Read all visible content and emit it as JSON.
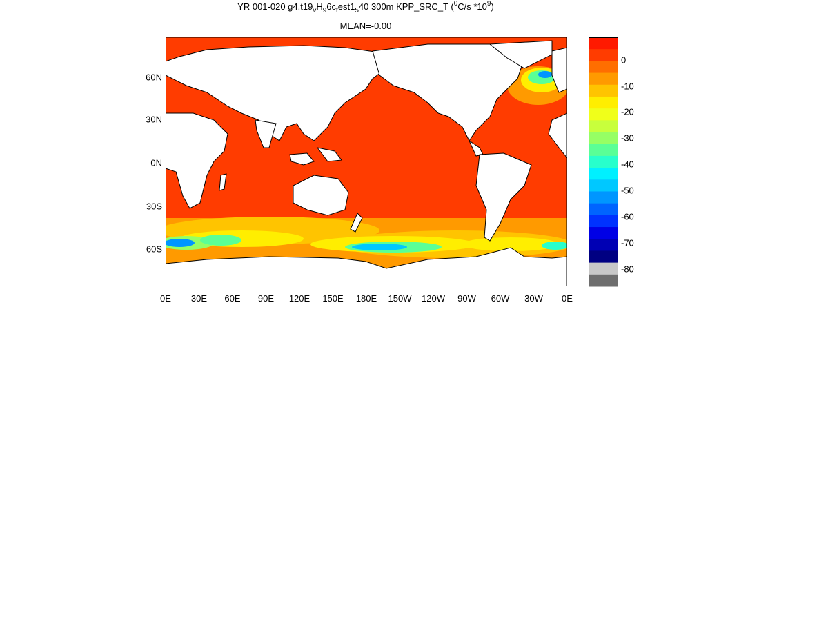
{
  "title": {
    "p1": "YR 001-020 g4.t19",
    "s1": "v",
    "p2": "H",
    "s2": "9",
    "p3": "6c",
    "s3": "t",
    "p4": "est1",
    "s4": "5",
    "p5": "40 300m KPP_SRC_T (",
    "sup1": "0",
    "p6": "C/s *10",
    "sup2": "9",
    "p7": ")"
  },
  "mean_label": "MEAN=-0.00",
  "x_ticks": [
    "0E",
    "30E",
    "60E",
    "90E",
    "120E",
    "150E",
    "180E",
    "150W",
    "120W",
    "90W",
    "60W",
    "30W",
    "0E"
  ],
  "y_ticks": [
    "60N",
    "30N",
    "0N",
    "30S",
    "60S"
  ],
  "colorbar": {
    "labels": [
      "0",
      "-10",
      "-20",
      "-30",
      "-40",
      "-50",
      "-60",
      "-70",
      "-80"
    ],
    "colors": [
      "#ff1a00",
      "#ff3c00",
      "#ff6e00",
      "#ff9a00",
      "#ffc400",
      "#ffee00",
      "#f0ff1a",
      "#c8ff3c",
      "#96ff64",
      "#5aff96",
      "#28ffcc",
      "#00f0ff",
      "#00c8ff",
      "#0096ff",
      "#0064ff",
      "#0032ff",
      "#0000e6",
      "#0000b4",
      "#000082",
      "#c8c8c8",
      "#6e6e6e"
    ]
  },
  "ocean_colors": {
    "base": "#ff3c00",
    "land": "#ffffff",
    "coast": "#000000"
  }
}
